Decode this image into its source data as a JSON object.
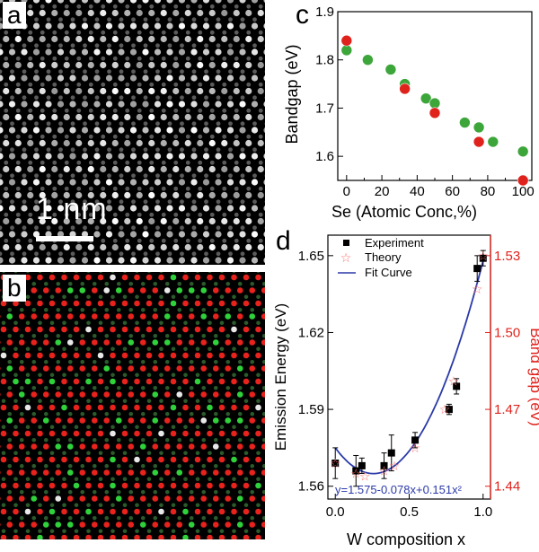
{
  "panels": {
    "a": {
      "letter": "a",
      "scale_label": "1 nm"
    },
    "b": {
      "letter": "b"
    },
    "c": {
      "letter": "c"
    },
    "d": {
      "letter": "d"
    }
  },
  "chart_data": [
    {
      "panel": "c",
      "type": "scatter",
      "xlabel": "Se (Atomic Conc,%)",
      "ylabel": "Bandgap (eV)",
      "xlim": [
        -5,
        105
      ],
      "ylim": [
        1.55,
        1.9
      ],
      "xticks": [
        0,
        20,
        40,
        60,
        80,
        100
      ],
      "xticks_minor": [
        10,
        30,
        50,
        70,
        90
      ],
      "yticks": [
        1.6,
        1.7,
        1.8,
        1.9
      ],
      "series": [
        {
          "color": "#3da63a",
          "x": [
            0,
            12,
            25,
            33,
            45,
            50,
            67,
            75,
            83,
            100
          ],
          "y": [
            1.82,
            1.8,
            1.78,
            1.75,
            1.72,
            1.71,
            1.67,
            1.66,
            1.63,
            1.61
          ]
        },
        {
          "color": "#e0221c",
          "x": [
            0,
            33,
            50,
            75,
            100
          ],
          "y": [
            1.84,
            1.74,
            1.69,
            1.63,
            1.55
          ]
        }
      ]
    },
    {
      "panel": "d",
      "type": "scatter",
      "xlabel": "W composition x",
      "ylabel": "Emission Energy (eV)",
      "ylabel_right": "Band gap (eV)",
      "xlim": [
        -0.05,
        1.05
      ],
      "ylim": [
        1.555,
        1.658
      ],
      "ylim_right": [
        1.435,
        1.538
      ],
      "xticks": [
        0.0,
        0.5,
        1.0
      ],
      "yticks": [
        1.56,
        1.59,
        1.62,
        1.65
      ],
      "yticks_right": [
        1.44,
        1.47,
        1.5,
        1.53
      ],
      "equation": "y=1.575-0.078x+0.151x²",
      "legend": [
        "Experiment",
        "Theory",
        "Fit Curve"
      ],
      "series": [
        {
          "kind": "experiment",
          "color": "#000000",
          "x": [
            0.0,
            0.14,
            0.18,
            0.33,
            0.38,
            0.54,
            0.77,
            0.82,
            0.96,
            1.0
          ],
          "y": [
            1.569,
            1.566,
            1.568,
            1.568,
            1.573,
            1.578,
            1.59,
            1.599,
            1.645,
            1.649
          ],
          "err": [
            0.006,
            0.006,
            0.003,
            0.005,
            0.007,
            0.003,
            0.002,
            0.003,
            0.005,
            0.003
          ]
        },
        {
          "kind": "theory",
          "color": "#ff7070",
          "x": [
            0.0,
            0.14,
            0.2,
            0.33,
            0.4,
            0.54,
            0.74,
            0.8,
            0.96,
            1.0
          ],
          "y_right": [
            1.449,
            1.445,
            1.444,
            1.446,
            1.448,
            1.455,
            1.47,
            1.481,
            1.517,
            1.53
          ]
        },
        {
          "kind": "fit",
          "color": "#2b3aa8",
          "x_range": [
            0.0,
            1.0
          ]
        }
      ]
    }
  ]
}
